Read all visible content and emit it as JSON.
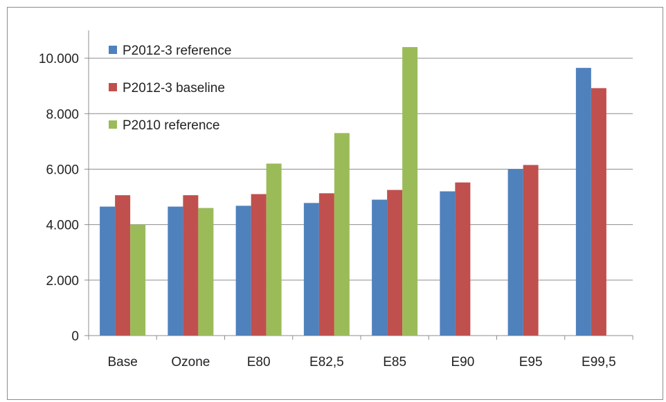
{
  "chart_data": {
    "type": "bar",
    "title": "",
    "xlabel": "",
    "ylabel": "",
    "categories": [
      "Base",
      "Ozone",
      "E80",
      "E82,5",
      "E85",
      "E90",
      "E95",
      "E99,5"
    ],
    "series": [
      {
        "name": "P2012-3 reference",
        "color": "#4f81bd",
        "values": [
          4650,
          4650,
          4680,
          4780,
          4900,
          5200,
          6000,
          9650
        ]
      },
      {
        "name": "P2012-3 baseline",
        "color": "#c0504d",
        "values": [
          5060,
          5060,
          5100,
          5130,
          5250,
          5520,
          6150,
          8920
        ]
      },
      {
        "name": "P2010 reference",
        "color": "#9bbb59",
        "values": [
          4000,
          4600,
          6200,
          7300,
          10400,
          null,
          null,
          null
        ]
      }
    ],
    "ylim": [
      0,
      11000
    ],
    "yticks": [
      0,
      2000,
      4000,
      6000,
      8000,
      10000
    ],
    "ytick_labels": [
      "0",
      "2.000",
      "4.000",
      "6.000",
      "8.000",
      "10.000"
    ],
    "grid": true,
    "legend_position": "top-left"
  }
}
